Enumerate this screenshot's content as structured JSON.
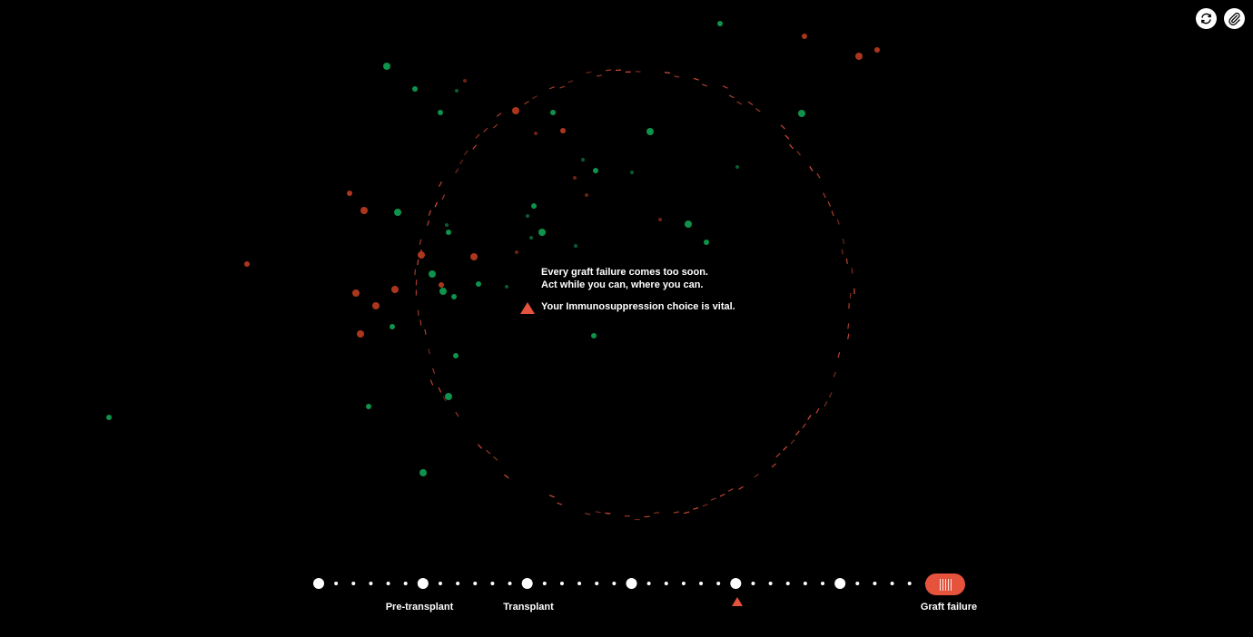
{
  "message": {
    "line1": "Every graft failure comes too soon.",
    "line2": "Act while you can, where you can.",
    "warning": "Your Immunosuppression choice is vital."
  },
  "toolbar": {
    "refresh_icon": "refresh-icon",
    "link_icon": "paperclip-icon"
  },
  "timeline": {
    "labels": {
      "pre_transplant": "Pre-transplant",
      "transplant": "Transplant",
      "graft_failure": "Graft failure"
    },
    "major_steps": 7,
    "minor_per_gap": 5,
    "current_step": 6,
    "marker_step": 4
  },
  "colors": {
    "background": "#000000",
    "accent_red": "#e5533d",
    "dot_red": "#b5391f",
    "dot_green": "#0f9a50",
    "ring": "#e5533d",
    "white": "#ffffff"
  }
}
